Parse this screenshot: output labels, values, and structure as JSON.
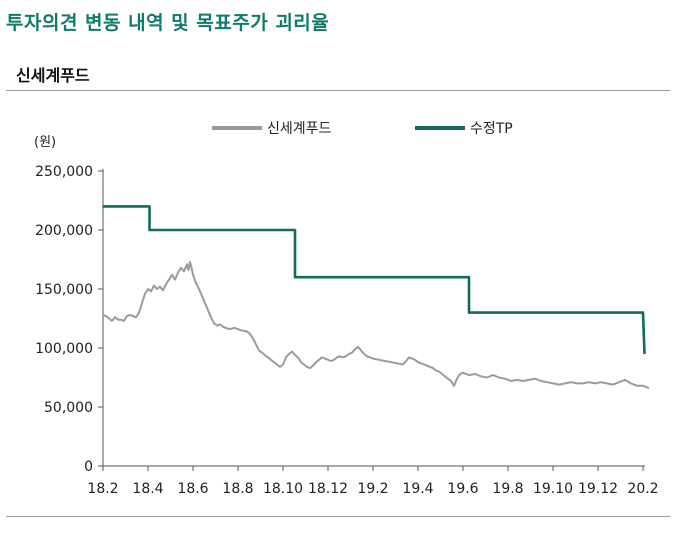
{
  "header": {
    "title": "투자의견 변동 내역 및 목표주가 괴리율",
    "subtitle": "신세계푸드"
  },
  "colors": {
    "accent": "#0e7a6b",
    "price_line": "#9b9b9b",
    "target_line": "#0f6b60"
  },
  "chart_data": {
    "type": "line",
    "title": "",
    "xlabel": "",
    "ylabel": "(원)",
    "ylim": [
      0,
      250000
    ],
    "yticks": [
      0,
      50000,
      100000,
      150000,
      200000,
      250000
    ],
    "ytick_labels": [
      "0",
      "50,000",
      "100,000",
      "150,000",
      "200,000",
      "250,000"
    ],
    "xticks": [
      "18.2",
      "18.4",
      "18.6",
      "18.8",
      "18.10",
      "18.12",
      "19.2",
      "19.4",
      "19.6",
      "19.8",
      "19.10",
      "19.12",
      "20.2"
    ],
    "legend_position": "top",
    "series": [
      {
        "name": "신세계푸드",
        "color": "#9b9b9b",
        "points": [
          [
            0.0,
            128000
          ],
          [
            0.1,
            127000
          ],
          [
            0.2,
            125000
          ],
          [
            0.3,
            123000
          ],
          [
            0.4,
            126000
          ],
          [
            0.5,
            124000
          ],
          [
            0.6,
            124000
          ],
          [
            0.7,
            123000
          ],
          [
            0.8,
            127000
          ],
          [
            0.9,
            128000
          ],
          [
            1.0,
            127000
          ],
          [
            1.1,
            126000
          ],
          [
            1.2,
            130000
          ],
          [
            1.3,
            138000
          ],
          [
            1.4,
            146000
          ],
          [
            1.5,
            150000
          ],
          [
            1.6,
            148000
          ],
          [
            1.7,
            153000
          ],
          [
            1.8,
            150000
          ],
          [
            1.9,
            152000
          ],
          [
            2.0,
            149000
          ],
          [
            2.1,
            154000
          ],
          [
            2.2,
            158000
          ],
          [
            2.3,
            162000
          ],
          [
            2.4,
            158000
          ],
          [
            2.5,
            164000
          ],
          [
            2.6,
            168000
          ],
          [
            2.7,
            165000
          ],
          [
            2.8,
            171000
          ],
          [
            2.85,
            166000
          ],
          [
            2.9,
            173000
          ],
          [
            2.95,
            168000
          ],
          [
            3.0,
            162000
          ],
          [
            3.1,
            155000
          ],
          [
            3.2,
            150000
          ],
          [
            3.3,
            144000
          ],
          [
            3.4,
            138000
          ],
          [
            3.5,
            132000
          ],
          [
            3.6,
            126000
          ],
          [
            3.7,
            121000
          ],
          [
            3.8,
            119000
          ],
          [
            3.9,
            120000
          ],
          [
            4.0,
            118000
          ],
          [
            4.2,
            116000
          ],
          [
            4.4,
            117000
          ],
          [
            4.6,
            115000
          ],
          [
            4.8,
            114000
          ],
          [
            4.9,
            112000
          ],
          [
            5.0,
            108000
          ],
          [
            5.1,
            103000
          ],
          [
            5.2,
            98000
          ],
          [
            5.3,
            96000
          ],
          [
            5.4,
            94000
          ],
          [
            5.5,
            92000
          ],
          [
            5.6,
            90000
          ],
          [
            5.7,
            88000
          ],
          [
            5.8,
            86000
          ],
          [
            5.9,
            84000
          ],
          [
            6.0,
            86000
          ],
          [
            6.1,
            92000
          ],
          [
            6.2,
            95000
          ],
          [
            6.3,
            97000
          ],
          [
            6.4,
            94000
          ],
          [
            6.5,
            92000
          ],
          [
            6.6,
            88000
          ],
          [
            6.7,
            86000
          ],
          [
            6.8,
            84000
          ],
          [
            6.9,
            83000
          ],
          [
            7.0,
            85000
          ],
          [
            7.1,
            88000
          ],
          [
            7.2,
            90000
          ],
          [
            7.3,
            92000
          ],
          [
            7.4,
            91000
          ],
          [
            7.5,
            90000
          ],
          [
            7.6,
            89000
          ],
          [
            7.7,
            90000
          ],
          [
            7.8,
            92000
          ],
          [
            7.9,
            93000
          ],
          [
            8.0,
            92000
          ],
          [
            8.1,
            93000
          ],
          [
            8.2,
            95000
          ],
          [
            8.3,
            96000
          ],
          [
            8.4,
            99000
          ],
          [
            8.5,
            101000
          ],
          [
            8.6,
            98000
          ],
          [
            8.7,
            95000
          ],
          [
            8.8,
            93000
          ],
          [
            8.9,
            92000
          ],
          [
            9.0,
            91000
          ],
          [
            9.2,
            90000
          ],
          [
            9.4,
            89000
          ],
          [
            9.6,
            88000
          ],
          [
            9.8,
            87000
          ],
          [
            10.0,
            86000
          ],
          [
            10.1,
            89000
          ],
          [
            10.2,
            92000
          ],
          [
            10.3,
            91000
          ],
          [
            10.4,
            90000
          ],
          [
            10.5,
            88000
          ],
          [
            10.6,
            87000
          ],
          [
            10.7,
            86000
          ],
          [
            10.8,
            85000
          ],
          [
            10.9,
            84000
          ],
          [
            11.0,
            83000
          ],
          [
            11.1,
            81000
          ],
          [
            11.2,
            80000
          ],
          [
            11.3,
            78000
          ],
          [
            11.4,
            76000
          ],
          [
            11.5,
            74000
          ],
          [
            11.6,
            72000
          ],
          [
            11.65,
            70000
          ],
          [
            11.7,
            68000
          ],
          [
            11.8,
            74000
          ],
          [
            11.9,
            78000
          ],
          [
            12.0,
            79000
          ],
          [
            12.2,
            77000
          ],
          [
            12.4,
            78000
          ],
          [
            12.6,
            76000
          ],
          [
            12.8,
            75000
          ],
          [
            13.0,
            77000
          ],
          [
            13.2,
            75000
          ],
          [
            13.4,
            74000
          ],
          [
            13.6,
            72000
          ],
          [
            13.8,
            73000
          ],
          [
            14.0,
            72000
          ],
          [
            14.2,
            73000
          ],
          [
            14.4,
            74000
          ],
          [
            14.6,
            72000
          ],
          [
            14.8,
            71000
          ],
          [
            15.0,
            70000
          ],
          [
            15.2,
            69000
          ],
          [
            15.4,
            70000
          ],
          [
            15.6,
            71000
          ],
          [
            15.8,
            70000
          ],
          [
            16.0,
            70000
          ],
          [
            16.2,
            71000
          ],
          [
            16.4,
            70000
          ],
          [
            16.6,
            71000
          ],
          [
            16.8,
            70000
          ],
          [
            17.0,
            69000
          ],
          [
            17.2,
            71000
          ],
          [
            17.4,
            73000
          ],
          [
            17.6,
            70000
          ],
          [
            17.8,
            68000
          ],
          [
            18.0,
            68000
          ],
          [
            18.1,
            67000
          ],
          [
            18.2,
            66000
          ]
        ]
      },
      {
        "name": "수정TP",
        "color": "#0f6b60",
        "points": [
          [
            0.0,
            220000
          ],
          [
            1.55,
            220000
          ],
          [
            1.55,
            200000
          ],
          [
            6.4,
            200000
          ],
          [
            6.4,
            160000
          ],
          [
            12.2,
            160000
          ],
          [
            12.2,
            130000
          ],
          [
            18.0,
            130000
          ],
          [
            18.05,
            95000
          ]
        ]
      }
    ]
  }
}
